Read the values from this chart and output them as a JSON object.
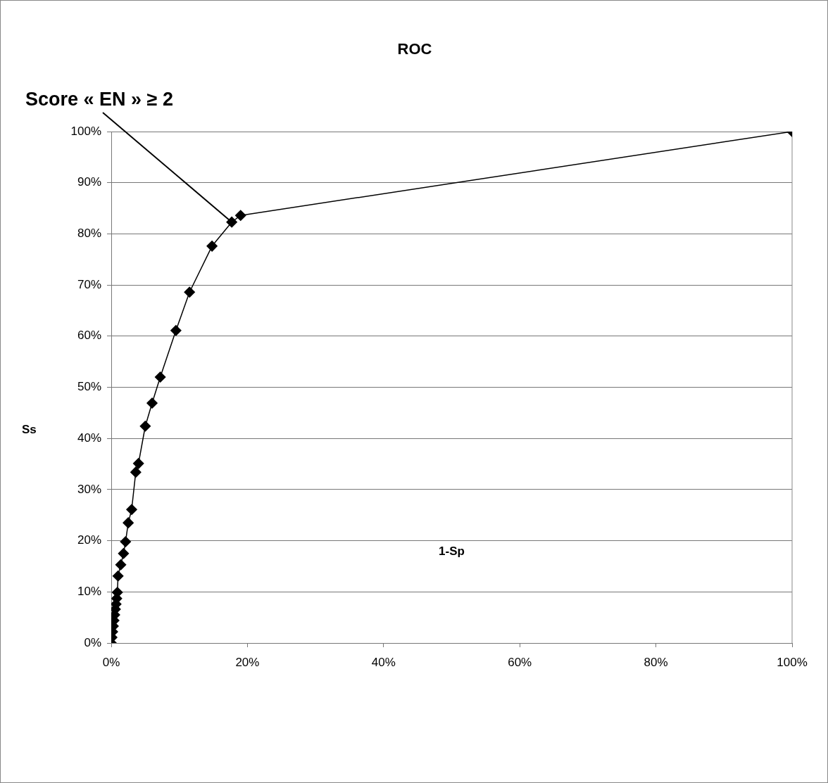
{
  "chart_data": {
    "type": "line",
    "title": "ROC",
    "xlabel": "1-Sp",
    "ylabel": "Ss",
    "x": [
      0,
      0.1,
      0.2,
      0.3,
      0.4,
      0.5,
      0.6,
      0.7,
      0.8,
      0.9,
      1.0,
      1.4,
      1.8,
      2.1,
      2.5,
      3.0,
      3.6,
      4.0,
      5.0,
      6.0,
      7.2,
      9.5,
      11.5,
      14.8,
      17.7,
      19.0,
      100
    ],
    "series": [
      {
        "color": "#000000",
        "values": [
          0,
          1.1,
          2.2,
          3.3,
          4.4,
          5.5,
          6.6,
          7.6,
          8.7,
          9.9,
          13.1,
          15.3,
          17.5,
          19.8,
          23.5,
          26.1,
          33.4,
          35.1,
          42.4,
          46.9,
          52.0,
          61.1,
          68.6,
          77.6,
          82.3,
          83.6,
          100
        ]
      }
    ],
    "annotations": [
      {
        "text": "Score « EN » ≥ 2",
        "x": 17.7,
        "y": 82.3
      }
    ],
    "xlim": [
      0,
      100
    ],
    "xticks": [
      {
        "value": 0,
        "label": "0%"
      },
      {
        "value": 20,
        "label": "20%"
      },
      {
        "value": 40,
        "label": "40%"
      },
      {
        "value": 60,
        "label": "60%"
      },
      {
        "value": 80,
        "label": "80%"
      },
      {
        "value": 100,
        "label": "100%"
      }
    ],
    "ylim": [
      0,
      100
    ],
    "yticks": [
      {
        "value": 0,
        "label": "0%"
      },
      {
        "value": 10,
        "label": "10%"
      },
      {
        "value": 20,
        "label": "20%"
      },
      {
        "value": 30,
        "label": "30%"
      },
      {
        "value": 40,
        "label": "40%"
      },
      {
        "value": 50,
        "label": "50%"
      },
      {
        "value": 60,
        "label": "60%"
      },
      {
        "value": 70,
        "label": "70%"
      },
      {
        "value": 80,
        "label": "80%"
      },
      {
        "value": 90,
        "label": "90%"
      },
      {
        "value": 100,
        "label": "100%"
      }
    ],
    "grid": "y",
    "marker": "diamond",
    "line_style": "solid",
    "legend": false
  }
}
